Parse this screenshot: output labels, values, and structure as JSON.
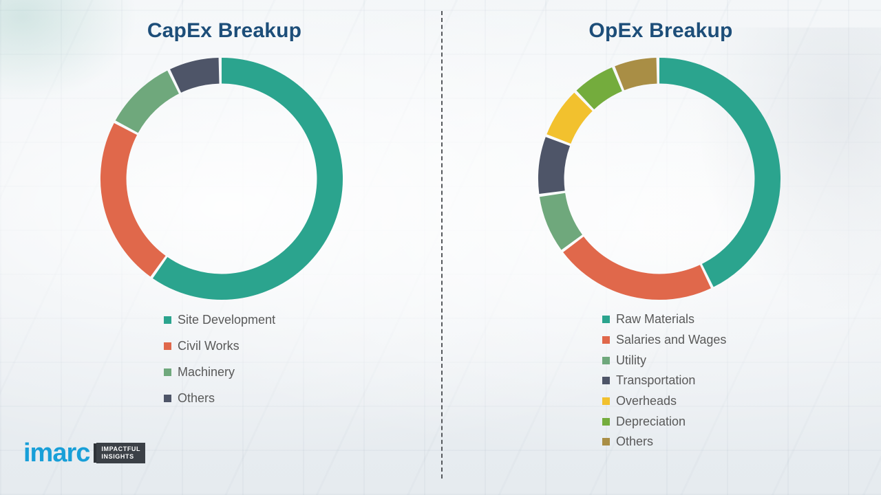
{
  "chart_data": [
    {
      "type": "pie",
      "subtype": "donut",
      "title": "CapEx Breakup",
      "labels": [
        "Site Development",
        "Civil Works",
        "Machinery",
        "Others"
      ],
      "values": [
        60,
        23,
        10,
        7
      ],
      "colors": [
        "#2ba48e",
        "#e0684b",
        "#6fa87c",
        "#4e5568"
      ],
      "legend_position": "bottom-left",
      "start_angle_deg": -90,
      "direction": "clockwise"
    },
    {
      "type": "pie",
      "subtype": "donut",
      "title": "OpEx Breakup",
      "labels": [
        "Raw Materials",
        "Salaries and Wages",
        "Utility",
        "Transportation",
        "Overheads",
        "Depreciation",
        "Others"
      ],
      "values": [
        43,
        22,
        8,
        8,
        7,
        6,
        6
      ],
      "colors": [
        "#2ba48e",
        "#e0684b",
        "#6fa87c",
        "#4e5568",
        "#f2c12e",
        "#74ac3d",
        "#a98e45"
      ],
      "legend_position": "bottom-left",
      "start_angle_deg": -90,
      "direction": "clockwise"
    }
  ],
  "titles": {
    "capex": "CapEx Breakup",
    "opex": "OpEx Breakup"
  },
  "colors": {
    "title_text": "#1d4e79",
    "legend_text": "#595959",
    "divider": "#55585c",
    "brand_blue": "#189fd8"
  },
  "logo": {
    "brand": "imarc",
    "tagline_line1": "IMPACTFUL",
    "tagline_line2": "INSIGHTS"
  }
}
